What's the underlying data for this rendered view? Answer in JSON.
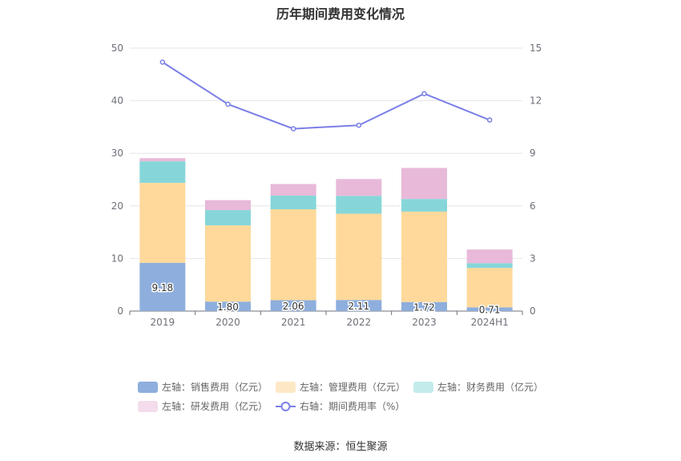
{
  "title": "历年期间费用变化情况",
  "source": "数据来源：恒生聚源",
  "chart_data": {
    "type": "bar",
    "stacked": true,
    "categories": [
      "2019",
      "2020",
      "2021",
      "2022",
      "2023",
      "2024H1"
    ],
    "left_axis": {
      "min": 0,
      "max": 50,
      "ticks": [
        0,
        10,
        20,
        30,
        40,
        50
      ]
    },
    "right_axis": {
      "min": 0,
      "max": 15,
      "ticks": [
        0,
        3,
        6,
        9,
        12,
        15
      ]
    },
    "series": [
      {
        "name": "左轴：销售费用（亿元）",
        "axis": "left",
        "color": "#8eaedd",
        "legend_color": "#8eaedd",
        "values": [
          9.18,
          1.8,
          2.06,
          2.11,
          1.72,
          0.71
        ],
        "show_labels": true
      },
      {
        "name": "左轴：管理费用（亿元）",
        "axis": "left",
        "color": "#fed99b",
        "legend_color": "#fde8c6",
        "values": [
          15.2,
          14.5,
          17.3,
          16.4,
          17.2,
          7.5
        ],
        "show_labels": false
      },
      {
        "name": "左轴：财务费用（亿元）",
        "axis": "left",
        "color": "#86d6d9",
        "legend_color": "#c4ebec",
        "values": [
          4.1,
          2.9,
          2.6,
          3.4,
          2.4,
          0.9
        ],
        "show_labels": false
      },
      {
        "name": "左轴：研发费用（亿元）",
        "axis": "left",
        "color": "#e8b9d9",
        "legend_color": "#f4dcec",
        "values": [
          0.6,
          1.9,
          2.2,
          3.2,
          5.9,
          2.6
        ],
        "show_labels": false
      },
      {
        "name": "右轴：期间费用率（%）",
        "axis": "right",
        "type": "line",
        "color": "#7b7fe6",
        "values": [
          14.2,
          11.8,
          10.4,
          10.6,
          12.4,
          10.9
        ]
      }
    ],
    "grid": true,
    "legend_position": "bottom"
  }
}
